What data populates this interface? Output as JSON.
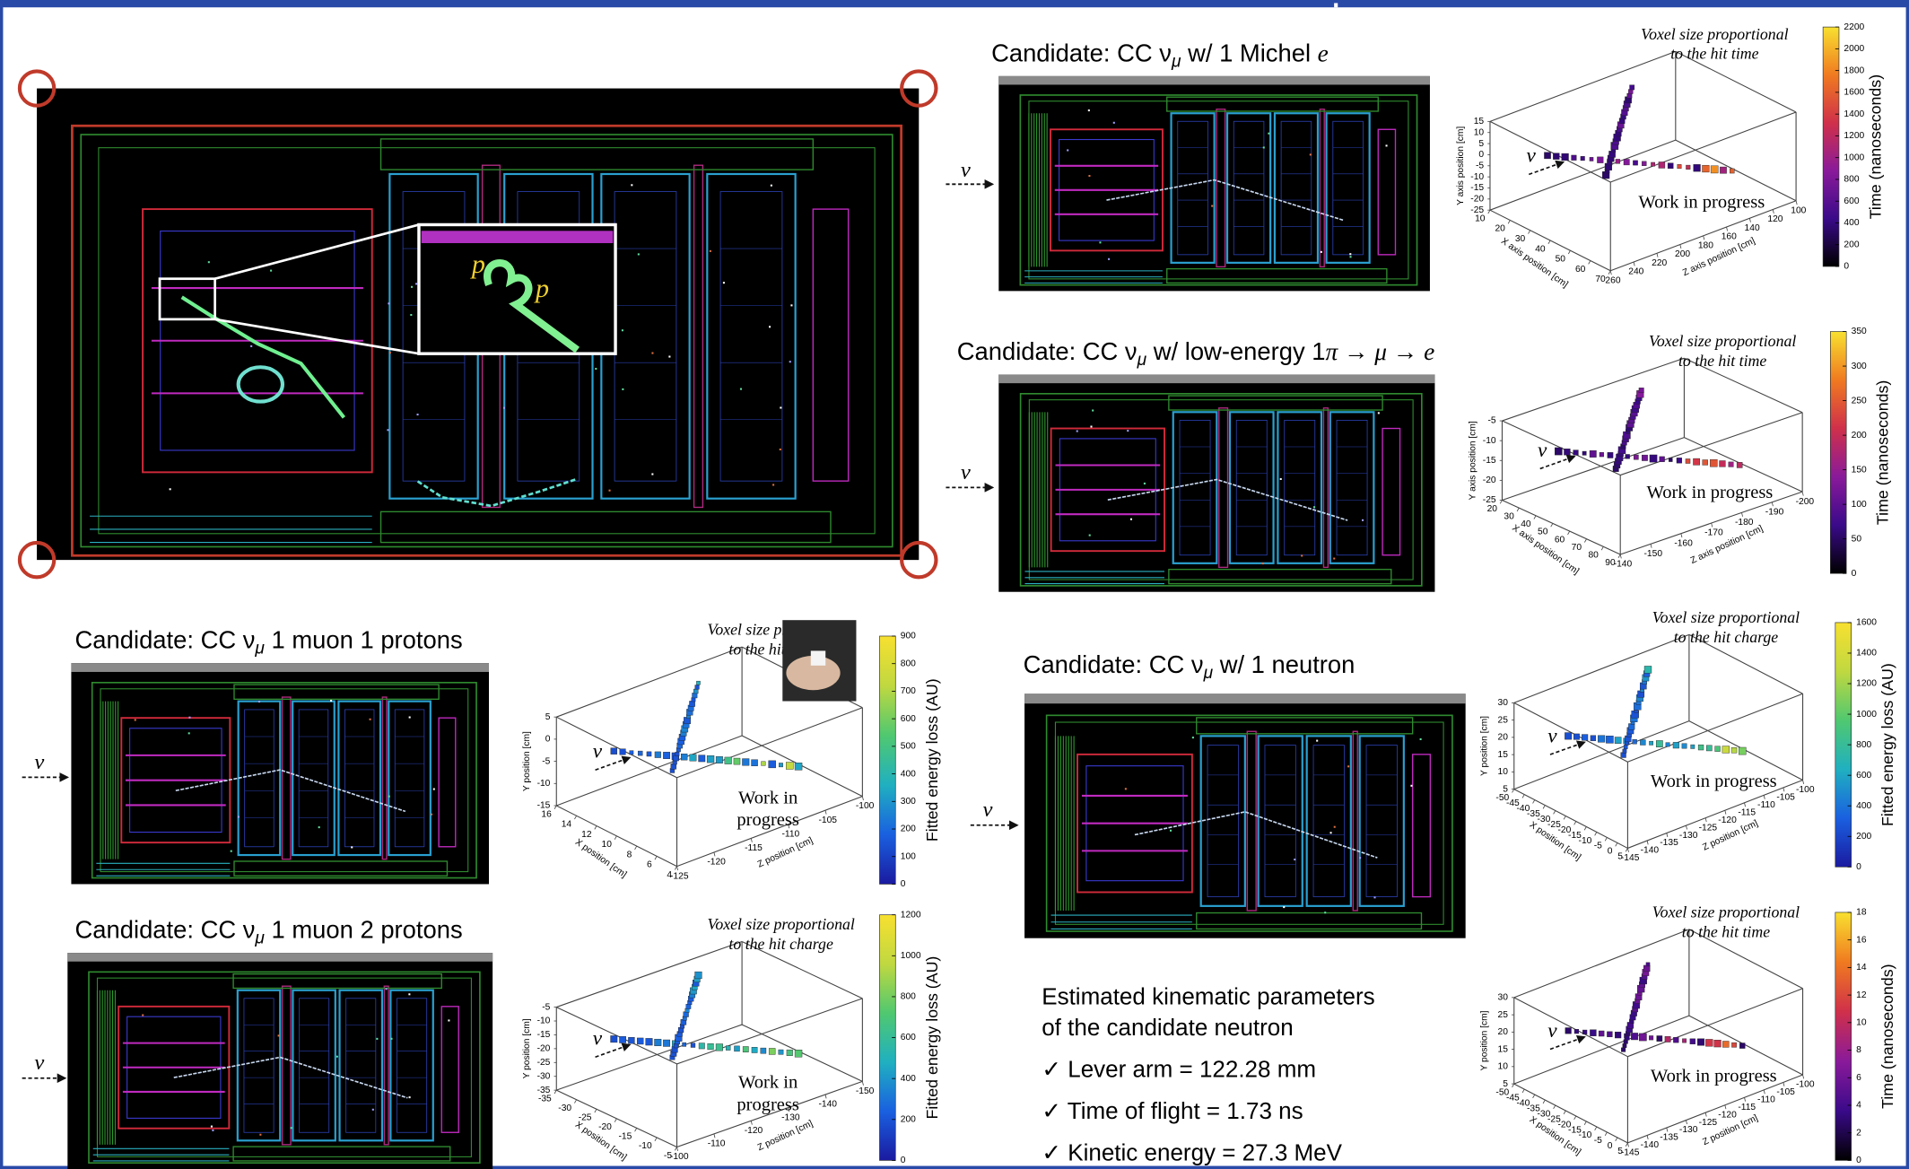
{
  "main_display": {
    "inset_labels": [
      "p",
      "p"
    ]
  },
  "panels": [
    {
      "title": [
        "Candidate: CC ν",
        "μ",
        " w/ 1 Michel ",
        "e"
      ],
      "nu": "ν",
      "plot": {
        "note": [
          "Voxel size proportional",
          "to the hit time"
        ],
        "watermark": [
          "Work in progress"
        ],
        "nu": "ν",
        "colorbar": {
          "label": "Time (nanoseconds)",
          "colors": [
            "#000000",
            "#3a0a8a",
            "#8a1a9a",
            "#d0304a",
            "#f07a20",
            "#f8e030"
          ],
          "ticks": [
            0,
            200,
            400,
            600,
            800,
            1000,
            1200,
            1400,
            1600,
            1800,
            2000,
            2200
          ]
        },
        "axes": {
          "y": {
            "label": "Y axis position [cm]",
            "ticks": [
              -25,
              -20,
              -15,
              -10,
              -5,
              0,
              5,
              10,
              15
            ]
          },
          "z": {
            "label": "Z axis position [cm]",
            "ticks": [
              260,
              240,
              220,
              200,
              180,
              160,
              140,
              120,
              100
            ]
          },
          "x": {
            "label": "X axis position [cm]",
            "ticks": [
              70,
              60,
              50,
              40,
              30,
              20,
              10
            ]
          }
        }
      }
    },
    {
      "title": [
        "Candidate: CC ν",
        "μ",
        " w/ low-energy 1",
        "π → μ → e"
      ],
      "nu": "ν",
      "plot": {
        "note": [
          "Voxel size proportional",
          "to the hit time"
        ],
        "watermark": [
          "Work in progress"
        ],
        "nu": "ν",
        "colorbar": {
          "label": "Time (nanoseconds)",
          "colors": [
            "#000000",
            "#3a0a8a",
            "#8a1a9a",
            "#d0304a",
            "#f07a20",
            "#f8e030"
          ],
          "ticks": [
            0,
            50,
            100,
            150,
            200,
            250,
            300,
            350
          ]
        },
        "axes": {
          "y": {
            "label": "Y axis position [cm]",
            "ticks": [
              -25,
              -20,
              -15,
              -10,
              -5
            ]
          },
          "z": {
            "label": "Z axis position [cm]",
            "ticks": [
              -140,
              -150,
              -160,
              -170,
              -180,
              -190,
              -200
            ]
          },
          "x": {
            "label": "X axis position [cm]",
            "ticks": [
              90,
              80,
              70,
              60,
              50,
              40,
              30,
              20
            ]
          }
        }
      }
    },
    {
      "title": [
        "Candidate: CC ν",
        "μ",
        " 1 muon 1 protons"
      ],
      "nu": "ν",
      "plot": {
        "note": [
          "Voxel size proportional",
          "to the hit charge"
        ],
        "watermark": [
          "Work in",
          "progress"
        ],
        "nu": "ν",
        "colorbar": {
          "label": "Fitted energy loss (AU)",
          "colors": [
            "#1a1aa0",
            "#1a60e0",
            "#20b0c0",
            "#50c870",
            "#c0d840",
            "#f8e030"
          ],
          "ticks": [
            0,
            100,
            200,
            300,
            400,
            500,
            600,
            700,
            800,
            900
          ]
        },
        "axes": {
          "y": {
            "label": "Y position [cm]",
            "ticks": [
              -15,
              -10,
              -5,
              0,
              5
            ]
          },
          "z": {
            "label": "Z position [cm]",
            "ticks": [
              -125,
              -120,
              -115,
              -110,
              -105,
              -100
            ]
          },
          "x": {
            "label": "X position [cm]",
            "ticks": [
              4,
              6,
              8,
              10,
              12,
              14,
              16
            ]
          }
        }
      }
    },
    {
      "title": [
        "Candidate: CC ν",
        "μ",
        " 1 muon 2 protons"
      ],
      "nu": "ν",
      "plot": {
        "note": [
          "Voxel size proportional",
          "to the hit charge"
        ],
        "watermark": [
          "Work in",
          "progress"
        ],
        "nu": "ν",
        "colorbar": {
          "label": "Fitted energy loss (AU)",
          "colors": [
            "#1a1aa0",
            "#1a60e0",
            "#20b0c0",
            "#50c870",
            "#c0d840",
            "#f8e030"
          ],
          "ticks": [
            0,
            200,
            400,
            600,
            800,
            1000,
            1200
          ]
        },
        "axes": {
          "y": {
            "label": "Y position [cm]",
            "ticks": [
              -35,
              -30,
              -25,
              -20,
              -15,
              -10,
              -5
            ]
          },
          "z": {
            "label": "Z position [cm]",
            "ticks": [
              -100,
              -110,
              -120,
              -130,
              -140,
              -150
            ]
          },
          "x": {
            "label": "X position [cm]",
            "ticks": [
              -5,
              -10,
              -15,
              -20,
              -25,
              -30,
              -35
            ]
          }
        }
      }
    },
    {
      "title": [
        "Candidate: CC ν",
        "μ",
        " w/ 1 neutron"
      ],
      "nu": "ν",
      "plot": {
        "note": [
          "Voxel size proportional",
          "to the hit charge"
        ],
        "watermark": [
          "Work in progress"
        ],
        "nu": "ν",
        "colorbar": {
          "label": "Fitted energy loss (AU)",
          "colors": [
            "#1a1aa0",
            "#1a60e0",
            "#20b0c0",
            "#50c870",
            "#c0d840",
            "#f8e030"
          ],
          "ticks": [
            0,
            200,
            400,
            600,
            800,
            1000,
            1200,
            1400,
            1600
          ]
        },
        "axes": {
          "y": {
            "label": "Y position [cm]",
            "ticks": [
              5,
              10,
              15,
              20,
              25,
              30
            ]
          },
          "z": {
            "label": "Z position [cm]",
            "ticks": [
              -145,
              -140,
              -135,
              -130,
              -125,
              -120,
              -115,
              -110,
              -105,
              -100
            ]
          },
          "x": {
            "label": "X position [cm]",
            "ticks": [
              5,
              0,
              -5,
              -10,
              -15,
              -20,
              -25,
              -30,
              -35,
              -40,
              -45,
              -50
            ]
          }
        }
      }
    },
    {
      "plot": {
        "note": [
          "Voxel size proportional",
          "to the hit time"
        ],
        "watermark": [
          "Work in progress"
        ],
        "nu": "ν",
        "colorbar": {
          "label": "Time (nanoseconds)",
          "colors": [
            "#000000",
            "#3a0a8a",
            "#8a1a9a",
            "#d0304a",
            "#f07a20",
            "#f8e030"
          ],
          "ticks": [
            0,
            2,
            4,
            6,
            8,
            10,
            12,
            14,
            16,
            18
          ]
        },
        "axes": {
          "y": {
            "label": "Y position [cm]",
            "ticks": [
              5,
              10,
              15,
              20,
              25,
              30
            ]
          },
          "z": {
            "label": "Z position [cm]",
            "ticks": [
              -145,
              -140,
              -135,
              -130,
              -125,
              -120,
              -115,
              -110,
              -105,
              -100
            ]
          },
          "x": {
            "label": "X position [cm]",
            "ticks": [
              5,
              0,
              -5,
              -10,
              -15,
              -20,
              -25,
              -30,
              -35,
              -40,
              -45,
              -50
            ]
          }
        }
      }
    }
  ],
  "kinematics": {
    "heading": [
      "Estimated kinematic parameters",
      "of the candidate neutron"
    ],
    "items": [
      "✓ Lever arm = 122.28 mm",
      "✓ Time of flight = 1.73 ns",
      "✓ Kinetic energy = 27.3 MeV"
    ]
  }
}
